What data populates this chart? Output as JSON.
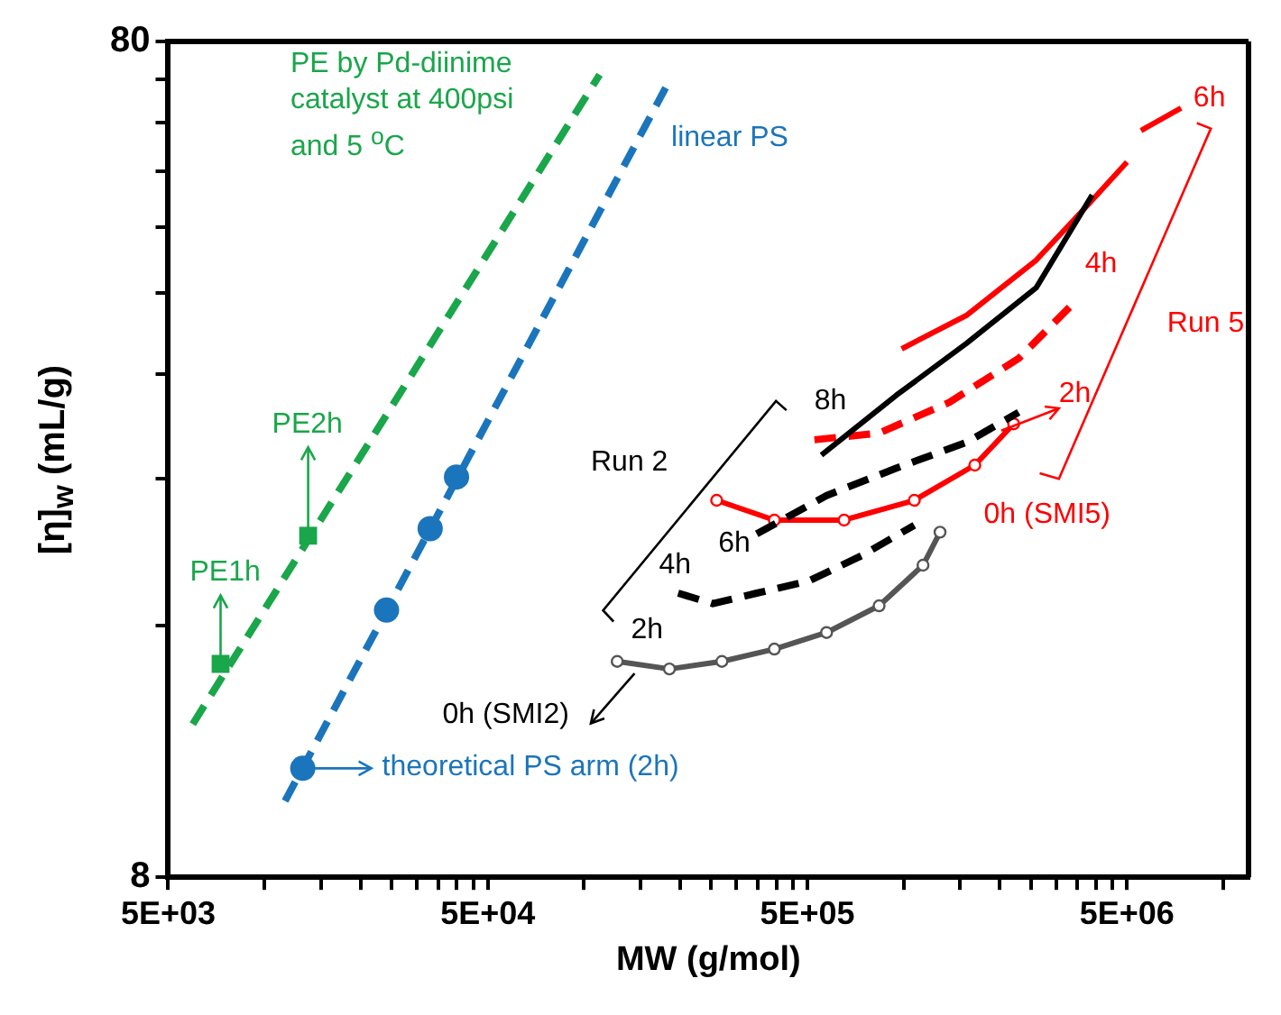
{
  "chart_data": {
    "type": "scatter",
    "xlabel": "MW (g/mol)",
    "ylabel": "[η]$_{w}$ (mL/g)",
    "log": "xy",
    "grid": false,
    "legend": false,
    "xlim": [
      5000,
      12000000
    ],
    "ylim": [
      8,
      80
    ],
    "xticks": [
      {
        "value": 5000,
        "label": "5E+03"
      },
      {
        "value": 10000,
        "label": null
      },
      {
        "value": 15000,
        "label": null
      },
      {
        "value": 20000,
        "label": null
      },
      {
        "value": 25000,
        "label": null
      },
      {
        "value": 30000,
        "label": null
      },
      {
        "value": 35000,
        "label": null
      },
      {
        "value": 40000,
        "label": null
      },
      {
        "value": 45000,
        "label": null
      },
      {
        "value": 50000,
        "label": "5E+04"
      },
      {
        "value": 100000,
        "label": null
      },
      {
        "value": 150000,
        "label": null
      },
      {
        "value": 200000,
        "label": null
      },
      {
        "value": 250000,
        "label": null
      },
      {
        "value": 300000,
        "label": null
      },
      {
        "value": 350000,
        "label": null
      },
      {
        "value": 400000,
        "label": null
      },
      {
        "value": 450000,
        "label": null
      },
      {
        "value": 500000,
        "label": "5E+05"
      },
      {
        "value": 1000000,
        "label": null
      },
      {
        "value": 1500000,
        "label": null
      },
      {
        "value": 2000000,
        "label": null
      },
      {
        "value": 2500000,
        "label": null
      },
      {
        "value": 3000000,
        "label": null
      },
      {
        "value": 3500000,
        "label": null
      },
      {
        "value": 4000000,
        "label": null
      },
      {
        "value": 4500000,
        "label": null
      },
      {
        "value": 5000000,
        "label": "5E+06"
      },
      {
        "value": 10000000,
        "label": null
      }
    ],
    "yticks": [
      8,
      {
        "value": 16,
        "label": null
      },
      {
        "value": 24,
        "label": null
      },
      {
        "value": 32,
        "label": null
      },
      {
        "value": 40,
        "label": null
      },
      {
        "value": 48,
        "label": null
      },
      {
        "value": 56,
        "label": null
      },
      {
        "value": 64,
        "label": null
      },
      {
        "value": 72,
        "label": null
      },
      80
    ],
    "series": [
      {
        "type": "scatter",
        "marker": "square",
        "color": "#1aa64a",
        "x": [
          7290,
          13700
        ],
        "values": [
          14.4,
          20.5
        ]
      },
      {
        "type": "line",
        "line_style": "dashed",
        "marker": "none",
        "color": "#1aa64a",
        "x": [
          5965,
          111900
        ],
        "values": [
          12.2,
          73.0
        ]
      },
      {
        "type": "scatter",
        "marker": "circle",
        "color": "#1b75bc",
        "x": [
          13180,
          24100,
          33000,
          39900
        ],
        "values": [
          10.8,
          16.7,
          20.9,
          24.1
        ]
      },
      {
        "type": "line",
        "line_style": "dashed",
        "marker": "none",
        "color": "#1b75bc",
        "x": [
          11600,
          180000
        ],
        "values": [
          9.87,
          70.4
        ]
      },
      {
        "type": "line",
        "line_style": "solid",
        "marker": "circle",
        "color": "#555555",
        "x": [
          127000,
          185000,
          270000,
          394000,
          574000,
          838000,
          1150000,
          1300000
        ],
        "values": [
          14.5,
          14.2,
          14.5,
          15.0,
          15.7,
          16.9,
          18.9,
          20.7
        ]
      },
      {
        "type": "line",
        "line_style": "dashed",
        "marker": "none",
        "color": "#000000",
        "x": [
          197000,
          253000,
          347000,
          506000,
          738000,
          1080000
        ],
        "values": [
          17.5,
          17.0,
          17.5,
          18.1,
          19.4,
          21.1
        ]
      },
      {
        "type": "line",
        "line_style": "dashed",
        "marker": "none",
        "color": "#000000",
        "x": [
          347000,
          574000,
          950000,
          1570000,
          2290000
        ],
        "values": [
          20.6,
          22.9,
          24.7,
          26.5,
          28.8
        ]
      },
      {
        "type": "line",
        "line_style": "solid",
        "marker": "none",
        "color": "#000000",
        "x": [
          553000,
          950000,
          1570000,
          2600000,
          3890000
        ],
        "values": [
          25.6,
          30.2,
          34.8,
          40.6,
          52.4
        ]
      },
      {
        "type": "line",
        "line_style": "solid",
        "marker": "circle",
        "color": "#ff0000",
        "x": [
          260000,
          394000,
          651000,
          1080000,
          1670000,
          2210000
        ],
        "values": [
          22.6,
          21.4,
          21.4,
          22.6,
          24.9,
          27.9
        ]
      },
      {
        "type": "line",
        "line_style": "dashed",
        "marker": "none",
        "color": "#ff0000",
        "x": [
          526000,
          838000,
          1390000,
          2290000,
          3470000
        ],
        "values": [
          26.7,
          27.2,
          29.6,
          33.4,
          39.2
        ]
      },
      {
        "type": "line",
        "line_style": "solid",
        "marker": "none",
        "color": "#ff0000",
        "x": [
          986000,
          1570000,
          2600000,
          3790000,
          5000000
        ],
        "values": [
          34.3,
          37.6,
          43.8,
          51.1,
          57.4
        ]
      },
      {
        "type": "line",
        "line_style": "solid",
        "marker": "none",
        "color": "#ff0000",
        "x": [
          5530000,
          7380000
        ],
        "values": [
          62.6,
          66.6
        ]
      }
    ],
    "annotations": [
      "PE by Pd-diinime\ncatalyst at 400psi\nand 5 $^{o}$C",
      "linear PS",
      {
        "text": "PE2h",
        "x": 13700,
        "y": 20.5
      },
      {
        "text": "PE1h",
        "x": 7290,
        "y": 14.4
      },
      {
        "text": "theoretical PS arm (2h)",
        "x": 13180,
        "y": 10.8
      },
      "0h (SMI2)",
      "Run 2",
      "2h",
      "4h",
      "6h",
      "8h",
      "Run 5",
      "6h",
      "4h",
      "2h",
      "0h (SMI5)"
    ]
  }
}
